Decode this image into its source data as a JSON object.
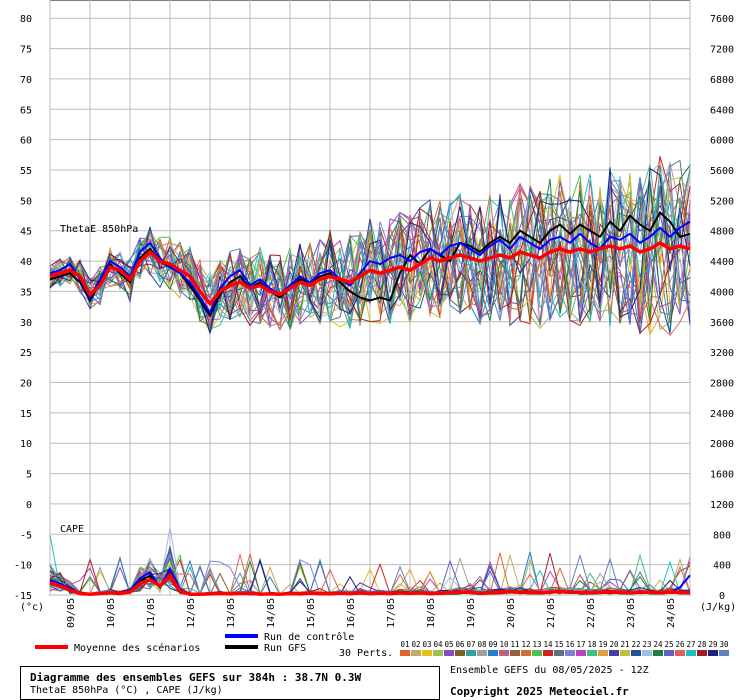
{
  "chart_data": {
    "type": "line",
    "title": "Diagramme des ensembles GEFS sur 384h : 38.7N 0.3W",
    "subtitle": "ThetaE 850hPa (°C) , CAPE (J/kg)",
    "run_info": "Ensemble GEFS du 08/05/2025 - 12Z",
    "copyright": "Copyright 2025 Meteociel.fr",
    "left_axis": {
      "unit": "(°c)",
      "ticks": [
        -15,
        -10,
        -5,
        0,
        5,
        10,
        15,
        20,
        25,
        30,
        35,
        40,
        45,
        50,
        55,
        60,
        65,
        70,
        75,
        80
      ],
      "range": [
        -15,
        80
      ]
    },
    "right_axis": {
      "unit": "(J/kg)",
      "ticks": [
        0,
        400,
        800,
        1200,
        1600,
        2000,
        2400,
        2800,
        3200,
        3600,
        4000,
        4400,
        4800,
        5200,
        5600,
        6000,
        6400,
        6800,
        7200,
        7600
      ],
      "range": [
        0,
        7600
      ]
    },
    "x_labels": [
      "09/05",
      "10/05",
      "11/05",
      "12/05",
      "13/05",
      "14/05",
      "15/05",
      "16/05",
      "17/05",
      "18/05",
      "19/05",
      "20/05",
      "21/05",
      "22/05",
      "23/05",
      "24/05"
    ],
    "panel_labels": {
      "thetae": "ThetaE 850hPa",
      "cape": "CAPE"
    },
    "legend": {
      "mean": "Moyenne des scénarios",
      "control": "Run de contrôle",
      "gfs": "Run GFS",
      "perts": "30 Perts.",
      "member_ids": [
        "01",
        "02",
        "03",
        "04",
        "05",
        "06",
        "07",
        "08",
        "09",
        "10",
        "11",
        "12",
        "13",
        "14",
        "15",
        "16",
        "17",
        "18",
        "19",
        "20",
        "21",
        "22",
        "23",
        "24",
        "25",
        "26",
        "27",
        "28",
        "29",
        "30"
      ],
      "member_colors": [
        "#e06030",
        "#c8a860",
        "#e0c020",
        "#a0c050",
        "#8050c0",
        "#806020",
        "#30a0a0",
        "#a0a0a0",
        "#2080d0",
        "#c06080",
        "#906040",
        "#d07030",
        "#50c050",
        "#d02020",
        "#607080",
        "#8080e0",
        "#c040c0",
        "#40c080",
        "#e0a040",
        "#4040a0",
        "#c0c040",
        "#2050a0",
        "#a0c0e0",
        "#208040",
        "#6060c0",
        "#e06060",
        "#20c0c0",
        "#a02020",
        "#202080",
        "#6080c0"
      ]
    },
    "x_hours": [
      0,
      6,
      12,
      18,
      24,
      30,
      36,
      42,
      48,
      54,
      60,
      66,
      72,
      78,
      84,
      90,
      96,
      102,
      108,
      114,
      120,
      126,
      132,
      138,
      144,
      150,
      156,
      162,
      168,
      174,
      180,
      186,
      192,
      198,
      204,
      210,
      216,
      222,
      228,
      234,
      240,
      246,
      252,
      258,
      264,
      270,
      276,
      282,
      288,
      294,
      300,
      306,
      312,
      318,
      324,
      330,
      336,
      342,
      348,
      354,
      360,
      366,
      372,
      378,
      384
    ],
    "series": [
      {
        "name": "Moyenne des scénarios",
        "role": "mean",
        "color": "#ff0000",
        "thetae": [
          37.5,
          38.0,
          38.5,
          37.5,
          34.5,
          36.0,
          39.0,
          38.5,
          37.0,
          40.0,
          41.5,
          40.0,
          39.5,
          38.5,
          37.5,
          35.0,
          33.0,
          35.0,
          36.0,
          36.5,
          35.5,
          36.0,
          35.0,
          34.5,
          35.5,
          36.5,
          36.0,
          37.0,
          37.5,
          37.0,
          36.5,
          37.5,
          38.5,
          38.0,
          38.5,
          39.0,
          38.5,
          39.5,
          40.5,
          40.0,
          40.5,
          41.0,
          40.5,
          40.0,
          40.5,
          41.0,
          40.5,
          41.5,
          41.0,
          40.5,
          41.5,
          42.0,
          41.5,
          42.0,
          41.5,
          42.0,
          42.5,
          42.0,
          42.5,
          41.5,
          42.0,
          43.0,
          42.0,
          42.5,
          42.0
        ],
        "cape": [
          160,
          120,
          60,
          20,
          10,
          20,
          30,
          20,
          40,
          150,
          200,
          120,
          260,
          50,
          10,
          10,
          15,
          20,
          15,
          20,
          25,
          10,
          15,
          10,
          20,
          15,
          25,
          20,
          15,
          25,
          20,
          30,
          20,
          25,
          20,
          30,
          25,
          30,
          20,
          25,
          30,
          40,
          35,
          25,
          30,
          35,
          45,
          40,
          35,
          30,
          40,
          45,
          40,
          35,
          30,
          35,
          40,
          35,
          30,
          40,
          35,
          30,
          40,
          35,
          30
        ]
      },
      {
        "name": "Run de contrôle",
        "role": "control",
        "color": "#0000ff",
        "thetae": [
          38.0,
          38.5,
          39.5,
          37.0,
          34.0,
          37.0,
          40.0,
          39.0,
          37.5,
          41.5,
          43.0,
          40.5,
          39.0,
          38.0,
          36.5,
          34.0,
          31.5,
          35.5,
          37.5,
          38.5,
          36.0,
          37.0,
          35.5,
          34.5,
          36.0,
          37.5,
          36.5,
          38.0,
          38.5,
          37.0,
          36.0,
          38.0,
          40.0,
          39.5,
          40.5,
          41.0,
          40.0,
          41.5,
          42.0,
          41.0,
          42.5,
          43.0,
          42.0,
          41.0,
          42.5,
          43.5,
          42.0,
          44.0,
          43.0,
          42.0,
          43.5,
          44.0,
          43.0,
          44.5,
          43.0,
          42.0,
          44.0,
          43.5,
          44.5,
          43.0,
          44.0,
          45.5,
          44.0,
          45.5,
          46.5
        ],
        "cape": [
          200,
          150,
          80,
          30,
          10,
          15,
          20,
          30,
          60,
          220,
          300,
          100,
          350,
          80,
          10,
          5,
          10,
          15,
          10,
          20,
          10,
          15,
          10,
          5,
          15,
          10,
          20,
          15,
          10,
          20,
          15,
          25,
          15,
          20,
          15,
          25,
          20,
          30,
          15,
          20,
          25,
          35,
          30,
          20,
          25,
          30,
          40,
          35,
          30,
          25,
          35,
          40,
          35,
          30,
          25,
          30,
          35,
          30,
          25,
          35,
          30,
          25,
          35,
          100,
          260
        ]
      },
      {
        "name": "Run GFS",
        "role": "gfs",
        "color": "#000000",
        "thetae": [
          37.0,
          37.5,
          38.0,
          36.5,
          33.5,
          36.5,
          39.5,
          38.0,
          36.5,
          40.5,
          42.0,
          40.0,
          39.0,
          38.0,
          36.0,
          33.5,
          31.0,
          34.5,
          36.5,
          37.5,
          35.5,
          36.5,
          35.0,
          34.0,
          35.5,
          37.0,
          36.5,
          37.5,
          38.0,
          36.5,
          35.0,
          34.0,
          33.5,
          34.0,
          33.5,
          38.0,
          41.0,
          39.5,
          42.0,
          41.0,
          40.0,
          43.0,
          42.5,
          41.5,
          43.0,
          44.0,
          43.0,
          45.0,
          44.0,
          43.0,
          45.0,
          46.0,
          44.5,
          46.0,
          45.0,
          44.0,
          46.5,
          45.0,
          47.5,
          46.0,
          45.0,
          48.0,
          46.5,
          44.0,
          44.5
        ],
        "cape": [
          180,
          130,
          70,
          25,
          10,
          20,
          25,
          20,
          50,
          190,
          250,
          110,
          300,
          60,
          10,
          5,
          10,
          15,
          10,
          15,
          10,
          10,
          10,
          5,
          10,
          10,
          15,
          10,
          10,
          15,
          10,
          20,
          10,
          15,
          10,
          20,
          15,
          25,
          10,
          15,
          20,
          30,
          25,
          15,
          20,
          25,
          35,
          30,
          25,
          20,
          30,
          35,
          30,
          25,
          20,
          25,
          30,
          25,
          20,
          30,
          25,
          20,
          30,
          25,
          20
        ]
      }
    ]
  }
}
